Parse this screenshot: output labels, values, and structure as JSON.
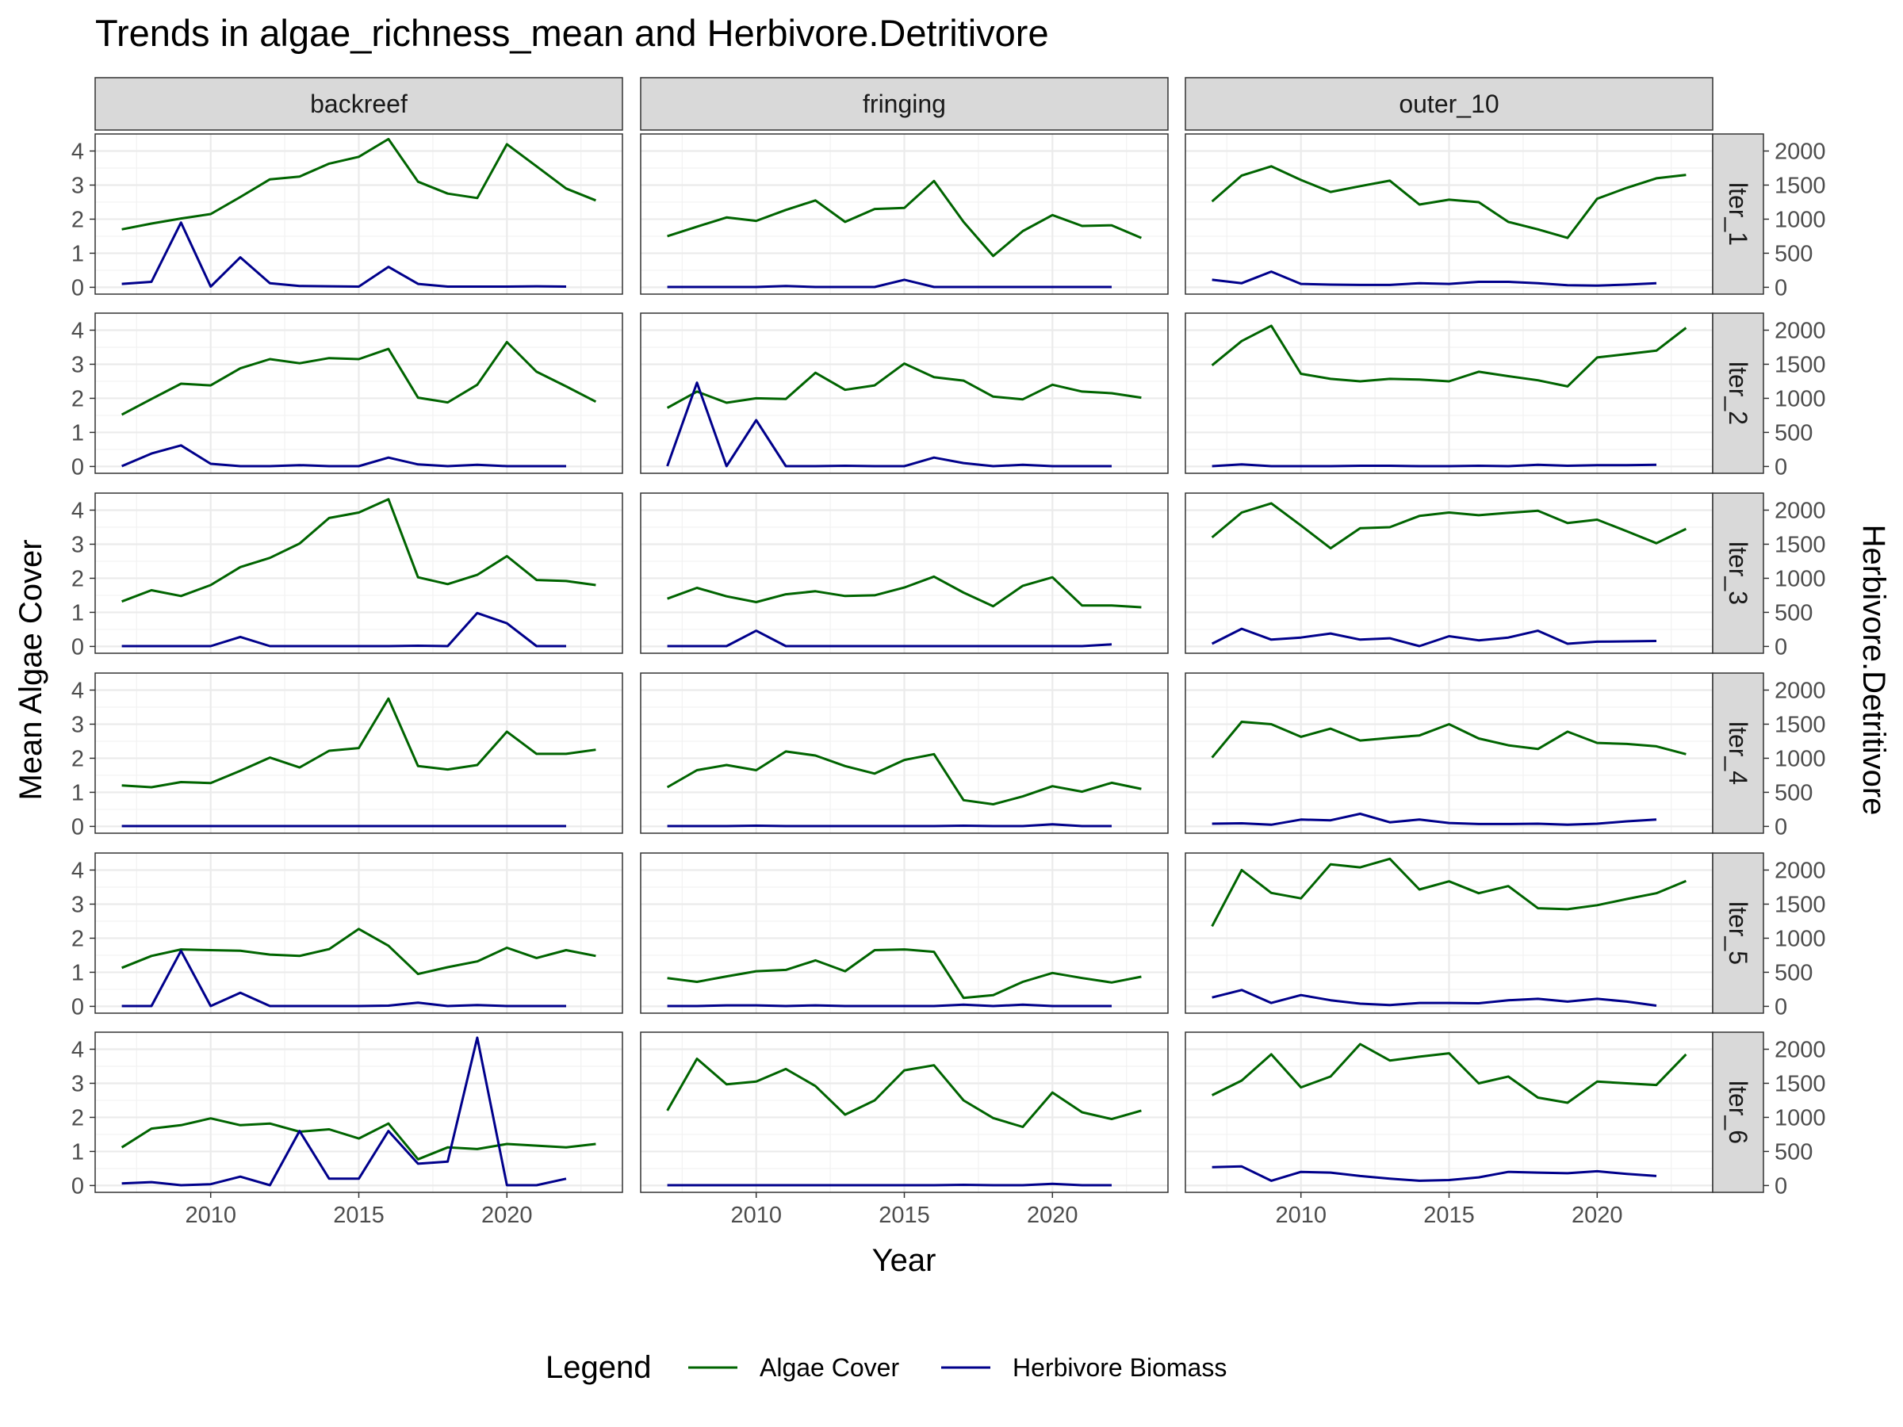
{
  "chart_data": {
    "type": "line",
    "title": "Trends in algae_richness_mean and Herbivore.Detritivore",
    "xlabel": "Year",
    "ylabel": "Mean Algae Cover",
    "ylabel_right": "Herbivore.Detritivore",
    "facet_cols": [
      "backreef",
      "fringing",
      "outer_10"
    ],
    "facet_rows": [
      "lter_1",
      "lter_2",
      "lter_3",
      "lter_4",
      "lter_5",
      "lter_6"
    ],
    "x_ticks": [
      2010,
      2015,
      2020
    ],
    "xlim": [
      2006.1,
      2023.9
    ],
    "y_left_ticks": [
      0,
      1,
      2,
      3,
      4
    ],
    "ylim_left": [
      -0.2,
      4.5
    ],
    "y_right_ticks": [
      0,
      500,
      1000,
      1500,
      2000
    ],
    "ylim_right": [
      -100,
      2250
    ],
    "grid": true,
    "legend": {
      "title": "Legend",
      "position": "bottom",
      "entries": [
        {
          "name": "Algae Cover",
          "color": "#006400"
        },
        {
          "name": "Herbivore Biomass",
          "color": "#00008B"
        }
      ]
    },
    "algae_years": [
      2007,
      2008,
      2009,
      2010,
      2011,
      2012,
      2013,
      2014,
      2015,
      2016,
      2017,
      2018,
      2019,
      2020,
      2021,
      2022,
      2023
    ],
    "herb_years": [
      2007,
      2008,
      2009,
      2010,
      2011,
      2012,
      2013,
      2014,
      2015,
      2016,
      2017,
      2018,
      2019,
      2020,
      2021,
      2022
    ],
    "panels": [
      {
        "row": "lter_1",
        "col": "backreef",
        "algae": [
          1.7,
          1.87,
          2.02,
          2.15,
          2.65,
          3.17,
          3.25,
          3.63,
          3.83,
          4.35,
          3.1,
          2.75,
          2.62,
          4.2,
          3.55,
          2.9,
          2.55
        ],
        "herbivore": [
          50,
          80,
          950,
          10,
          440,
          60,
          20,
          15,
          10,
          300,
          50,
          10,
          10,
          10,
          15,
          10
        ]
      },
      {
        "row": "lter_1",
        "col": "fringing",
        "algae": [
          1.5,
          1.78,
          2.05,
          1.95,
          2.27,
          2.55,
          1.92,
          2.3,
          2.33,
          3.12,
          1.92,
          0.92,
          1.65,
          2.12,
          1.8,
          1.82,
          1.45
        ],
        "herbivore": [
          5,
          5,
          5,
          5,
          20,
          5,
          5,
          5,
          110,
          5,
          5,
          5,
          5,
          5,
          5,
          5
        ]
      },
      {
        "row": "lter_1",
        "col": "outer_10",
        "algae": [
          2.52,
          3.28,
          3.55,
          3.15,
          2.8,
          2.97,
          3.13,
          2.43,
          2.57,
          2.5,
          1.92,
          1.7,
          1.45,
          2.6,
          2.92,
          3.2,
          3.3
        ],
        "herbivore": [
          110,
          60,
          230,
          50,
          40,
          35,
          35,
          60,
          50,
          80,
          80,
          60,
          30,
          25,
          40,
          60
        ]
      },
      {
        "row": "lter_2",
        "col": "backreef",
        "algae": [
          1.52,
          1.98,
          2.43,
          2.38,
          2.88,
          3.15,
          3.03,
          3.18,
          3.15,
          3.45,
          2.02,
          1.88,
          2.4,
          3.65,
          2.78,
          2.35,
          1.9
        ],
        "herbivore": [
          5,
          190,
          310,
          40,
          5,
          5,
          20,
          5,
          5,
          130,
          30,
          5,
          25,
          5,
          5,
          5
        ]
      },
      {
        "row": "lter_2",
        "col": "fringing",
        "algae": [
          1.72,
          2.2,
          1.87,
          2.0,
          1.98,
          2.75,
          2.25,
          2.38,
          3.02,
          2.62,
          2.52,
          2.05,
          1.97,
          2.4,
          2.2,
          2.15,
          2.02
        ],
        "herbivore": [
          5,
          1230,
          5,
          680,
          5,
          5,
          10,
          5,
          5,
          130,
          50,
          5,
          25,
          5,
          5,
          5
        ]
      },
      {
        "row": "lter_2",
        "col": "outer_10",
        "algae": [
          2.97,
          3.68,
          4.13,
          2.72,
          2.57,
          2.5,
          2.57,
          2.55,
          2.5,
          2.78,
          2.65,
          2.53,
          2.35,
          3.2,
          3.3,
          3.4,
          4.07
        ],
        "herbivore": [
          5,
          30,
          5,
          5,
          5,
          10,
          10,
          5,
          5,
          10,
          5,
          25,
          10,
          20,
          20,
          25
        ]
      },
      {
        "row": "lter_3",
        "col": "backreef",
        "algae": [
          1.32,
          1.65,
          1.48,
          1.8,
          2.33,
          2.6,
          3.02,
          3.77,
          3.93,
          4.32,
          2.03,
          1.83,
          2.1,
          2.65,
          1.95,
          1.92,
          1.8
        ],
        "herbivore": [
          5,
          5,
          5,
          5,
          140,
          5,
          5,
          5,
          5,
          5,
          10,
          5,
          490,
          340,
          5,
          5
        ]
      },
      {
        "row": "lter_3",
        "col": "fringing",
        "algae": [
          1.4,
          1.72,
          1.47,
          1.3,
          1.53,
          1.62,
          1.48,
          1.5,
          1.73,
          2.05,
          1.58,
          1.18,
          1.78,
          2.03,
          1.2,
          1.2,
          1.15
        ],
        "herbivore": [
          5,
          5,
          5,
          230,
          5,
          5,
          5,
          5,
          5,
          5,
          5,
          5,
          5,
          5,
          5,
          30
        ]
      },
      {
        "row": "lter_3",
        "col": "outer_10",
        "algae": [
          3.2,
          3.93,
          4.2,
          3.55,
          2.88,
          3.47,
          3.5,
          3.83,
          3.93,
          3.85,
          3.92,
          3.98,
          3.62,
          3.72,
          3.38,
          3.03,
          3.45
        ],
        "herbivore": [
          40,
          260,
          100,
          130,
          190,
          100,
          120,
          5,
          150,
          90,
          130,
          230,
          40,
          70,
          75,
          80
        ]
      },
      {
        "row": "lter_4",
        "col": "backreef",
        "algae": [
          1.2,
          1.15,
          1.3,
          1.27,
          1.63,
          2.02,
          1.73,
          2.22,
          2.3,
          3.75,
          1.77,
          1.67,
          1.8,
          2.78,
          2.13,
          2.13,
          2.25
        ],
        "herbivore": [
          5,
          5,
          5,
          5,
          5,
          5,
          5,
          5,
          5,
          5,
          5,
          5,
          5,
          5,
          5,
          5
        ]
      },
      {
        "row": "lter_4",
        "col": "fringing",
        "algae": [
          1.15,
          1.65,
          1.8,
          1.65,
          2.2,
          2.08,
          1.77,
          1.55,
          1.95,
          2.12,
          0.77,
          0.65,
          0.88,
          1.18,
          1.02,
          1.28,
          1.1
        ],
        "herbivore": [
          5,
          5,
          5,
          10,
          5,
          5,
          5,
          5,
          5,
          5,
          10,
          5,
          5,
          30,
          5,
          5
        ]
      },
      {
        "row": "lter_4",
        "col": "outer_10",
        "algae": [
          2.02,
          3.07,
          3.0,
          2.63,
          2.87,
          2.52,
          2.6,
          2.67,
          3.0,
          2.58,
          2.38,
          2.27,
          2.78,
          2.45,
          2.42,
          2.35,
          2.12
        ],
        "herbivore": [
          40,
          45,
          25,
          100,
          90,
          185,
          60,
          100,
          50,
          35,
          35,
          40,
          25,
          40,
          75,
          100
        ]
      },
      {
        "row": "lter_5",
        "col": "backreef",
        "algae": [
          1.13,
          1.48,
          1.67,
          1.65,
          1.63,
          1.52,
          1.48,
          1.68,
          2.27,
          1.78,
          0.95,
          1.15,
          1.32,
          1.72,
          1.42,
          1.65,
          1.48
        ],
        "herbivore": [
          5,
          5,
          815,
          5,
          200,
          5,
          5,
          5,
          5,
          10,
          55,
          5,
          20,
          5,
          5,
          5
        ]
      },
      {
        "row": "lter_5",
        "col": "fringing",
        "algae": [
          0.83,
          0.72,
          0.88,
          1.03,
          1.07,
          1.35,
          1.03,
          1.65,
          1.67,
          1.6,
          0.25,
          0.33,
          0.72,
          0.98,
          0.83,
          0.7,
          0.87
        ],
        "herbivore": [
          5,
          5,
          15,
          15,
          5,
          15,
          5,
          5,
          5,
          5,
          25,
          5,
          25,
          5,
          5,
          5
        ]
      },
      {
        "row": "lter_5",
        "col": "outer_10",
        "algae": [
          2.35,
          4.0,
          3.33,
          3.17,
          4.17,
          4.08,
          4.33,
          3.43,
          3.67,
          3.32,
          3.53,
          2.88,
          2.85,
          2.97,
          3.15,
          3.32,
          3.68
        ],
        "herbivore": [
          130,
          240,
          50,
          165,
          90,
          40,
          20,
          50,
          50,
          45,
          90,
          110,
          70,
          110,
          70,
          10
        ]
      },
      {
        "row": "lter_6",
        "col": "backreef",
        "algae": [
          1.12,
          1.67,
          1.77,
          1.97,
          1.77,
          1.82,
          1.58,
          1.65,
          1.38,
          1.82,
          0.77,
          1.12,
          1.07,
          1.22,
          1.17,
          1.12,
          1.22
        ],
        "herbivore": [
          30,
          50,
          5,
          20,
          130,
          5,
          800,
          100,
          100,
          800,
          320,
          350,
          2170,
          5,
          5,
          100
        ]
      },
      {
        "row": "lter_6",
        "col": "fringing",
        "algae": [
          2.2,
          3.72,
          2.97,
          3.05,
          3.42,
          2.92,
          2.08,
          2.5,
          3.38,
          3.53,
          2.5,
          1.98,
          1.72,
          2.73,
          2.15,
          1.95,
          2.2
        ],
        "herbivore": [
          5,
          5,
          5,
          5,
          5,
          5,
          5,
          5,
          5,
          5,
          10,
          5,
          5,
          25,
          5,
          5
        ]
      },
      {
        "row": "lter_6",
        "col": "outer_10",
        "algae": [
          2.65,
          3.08,
          3.85,
          2.88,
          3.2,
          4.15,
          3.67,
          3.78,
          3.88,
          3.0,
          3.2,
          2.58,
          2.43,
          3.05,
          3.0,
          2.95,
          3.85
        ],
        "herbivore": [
          270,
          280,
          70,
          200,
          190,
          140,
          100,
          70,
          80,
          120,
          200,
          190,
          180,
          210,
          170,
          140
        ]
      }
    ]
  }
}
